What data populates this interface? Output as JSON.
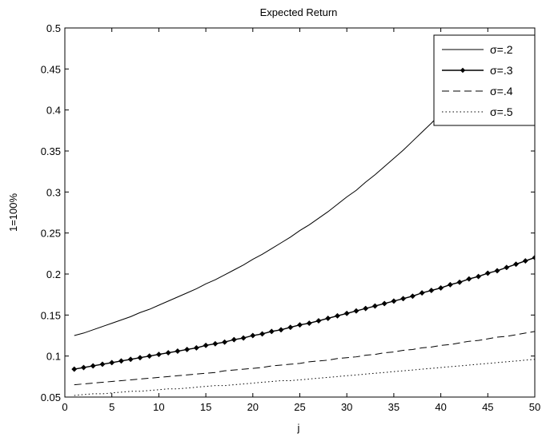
{
  "chart_data": {
    "type": "line",
    "title": "Expected Return",
    "xlabel": "j",
    "ylabel": "1=100%",
    "xlim": [
      0,
      50
    ],
    "ylim": [
      0.05,
      0.5
    ],
    "xticks": [
      0,
      5,
      10,
      15,
      20,
      25,
      30,
      35,
      40,
      45,
      50
    ],
    "yticks": [
      0.05,
      0.1,
      0.15,
      0.2,
      0.25,
      0.3,
      0.35,
      0.4,
      0.45,
      0.5
    ],
    "xtick_labels": [
      "0",
      "5",
      "10",
      "15",
      "20",
      "25",
      "30",
      "35",
      "40",
      "45",
      "50"
    ],
    "ytick_labels": [
      "0.05",
      "0.1",
      "0.15",
      "0.2",
      "0.25",
      "0.3",
      "0.35",
      "0.4",
      "0.45",
      "0.5"
    ],
    "grid": false,
    "legend_position": "top-right",
    "x": [
      1,
      2,
      3,
      4,
      5,
      6,
      7,
      8,
      9,
      10,
      11,
      12,
      13,
      14,
      15,
      16,
      17,
      18,
      19,
      20,
      21,
      22,
      23,
      24,
      25,
      26,
      27,
      28,
      29,
      30,
      31,
      32,
      33,
      34,
      35,
      36,
      37,
      38,
      39,
      40,
      41,
      42,
      43,
      44,
      45,
      46,
      47,
      48,
      49,
      50
    ],
    "series": [
      {
        "name": "σ=.2",
        "style": "solid",
        "marker": "none",
        "values": [
          0.125,
          0.128,
          0.132,
          0.136,
          0.14,
          0.144,
          0.148,
          0.153,
          0.157,
          0.162,
          0.167,
          0.172,
          0.177,
          0.182,
          0.188,
          0.193,
          0.199,
          0.205,
          0.211,
          0.218,
          0.224,
          0.231,
          0.238,
          0.245,
          0.253,
          0.26,
          0.268,
          0.276,
          0.285,
          0.294,
          0.302,
          0.312,
          0.321,
          0.331,
          0.341,
          0.351,
          0.362,
          0.373,
          0.384,
          0.396,
          0.407,
          0.417,
          0.425,
          0.432,
          0.438,
          0.443,
          0.448,
          0.453,
          0.458,
          0.463
        ]
      },
      {
        "name": "σ=.3",
        "style": "solid",
        "marker": "diamond",
        "values": [
          0.084,
          0.086,
          0.088,
          0.09,
          0.092,
          0.094,
          0.096,
          0.098,
          0.1,
          0.102,
          0.104,
          0.106,
          0.108,
          0.11,
          0.113,
          0.115,
          0.117,
          0.12,
          0.122,
          0.125,
          0.127,
          0.13,
          0.132,
          0.135,
          0.138,
          0.14,
          0.143,
          0.146,
          0.149,
          0.152,
          0.155,
          0.158,
          0.161,
          0.164,
          0.167,
          0.17,
          0.173,
          0.177,
          0.18,
          0.183,
          0.187,
          0.19,
          0.194,
          0.197,
          0.201,
          0.204,
          0.208,
          0.212,
          0.216,
          0.22
        ]
      },
      {
        "name": "σ=.4",
        "style": "dashed",
        "marker": "none",
        "values": [
          0.065,
          0.066,
          0.067,
          0.068,
          0.069,
          0.07,
          0.071,
          0.072,
          0.073,
          0.074,
          0.075,
          0.076,
          0.077,
          0.078,
          0.079,
          0.08,
          0.082,
          0.083,
          0.084,
          0.085,
          0.086,
          0.088,
          0.089,
          0.09,
          0.091,
          0.093,
          0.094,
          0.095,
          0.097,
          0.098,
          0.099,
          0.101,
          0.102,
          0.104,
          0.105,
          0.107,
          0.108,
          0.11,
          0.111,
          0.113,
          0.114,
          0.116,
          0.118,
          0.119,
          0.121,
          0.123,
          0.124,
          0.126,
          0.128,
          0.13
        ]
      },
      {
        "name": "σ=.5",
        "style": "dotted",
        "marker": "none",
        "values": [
          0.052,
          0.053,
          0.054,
          0.054,
          0.055,
          0.056,
          0.057,
          0.057,
          0.058,
          0.059,
          0.06,
          0.06,
          0.061,
          0.062,
          0.063,
          0.064,
          0.064,
          0.065,
          0.066,
          0.067,
          0.068,
          0.069,
          0.07,
          0.07,
          0.071,
          0.072,
          0.073,
          0.074,
          0.075,
          0.076,
          0.077,
          0.078,
          0.079,
          0.08,
          0.081,
          0.082,
          0.083,
          0.084,
          0.085,
          0.086,
          0.087,
          0.088,
          0.089,
          0.09,
          0.091,
          0.092,
          0.093,
          0.094,
          0.095,
          0.096
        ]
      }
    ]
  }
}
